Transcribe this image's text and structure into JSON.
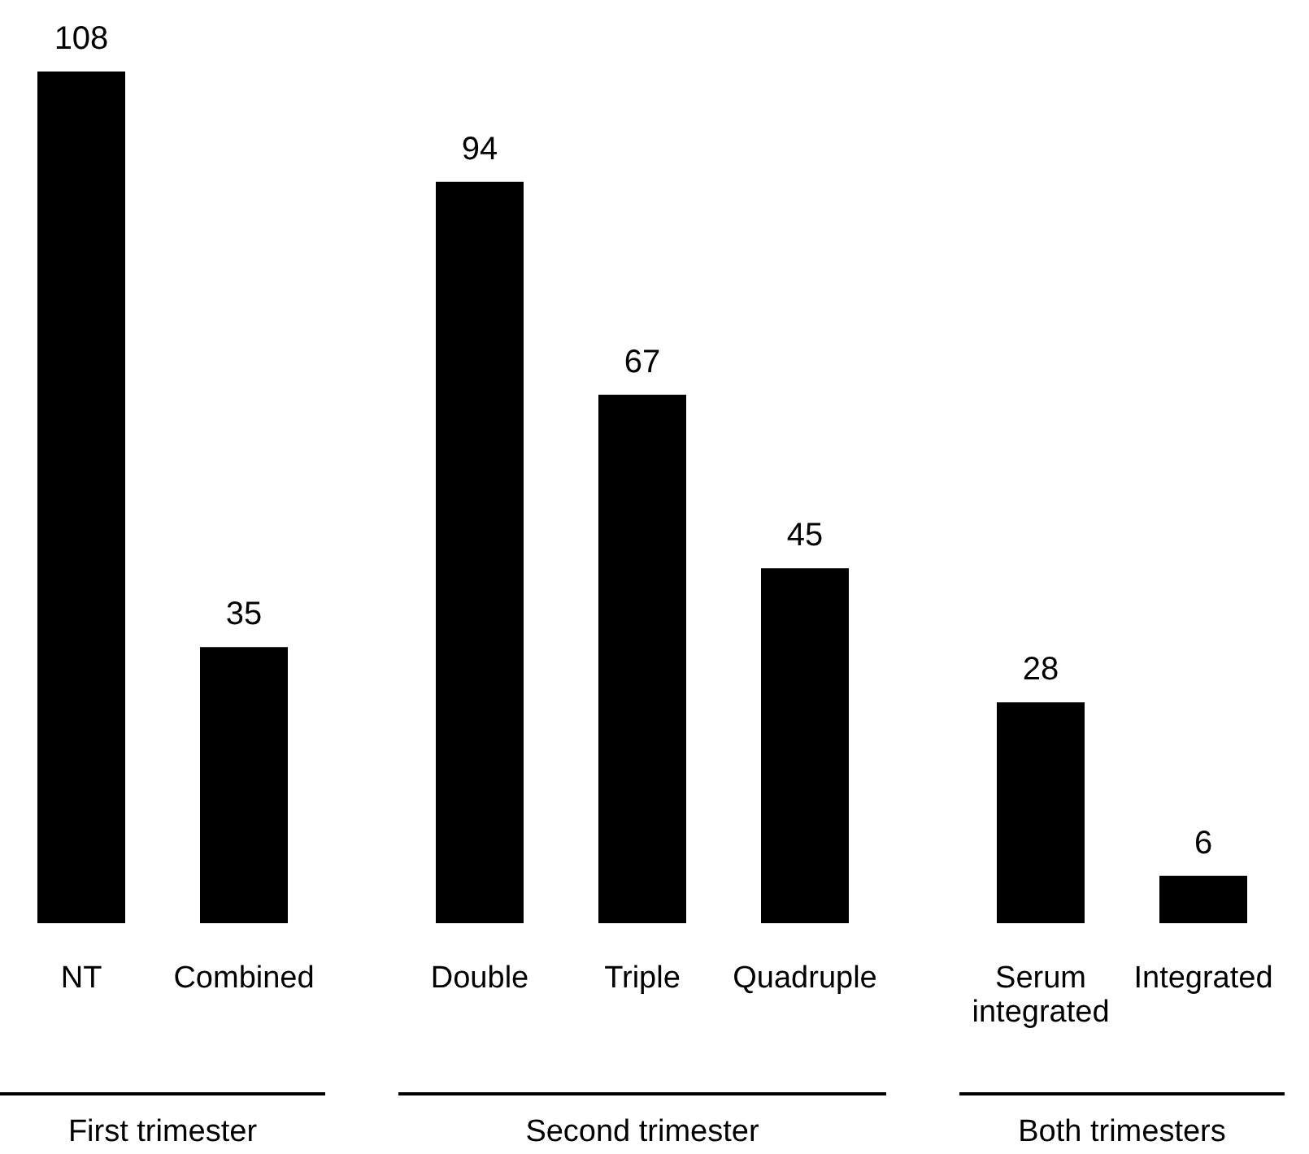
{
  "chart_data": [
    {
      "type": "bar",
      "xlabel": "First trimester",
      "categories": [
        "NT",
        "Combined"
      ],
      "values": [
        108,
        35
      ],
      "color": "#000000",
      "data_labels": true
    },
    {
      "type": "bar",
      "xlabel": "Second trimester",
      "categories": [
        "Double",
        "Triple",
        "Quadruple"
      ],
      "values": [
        94,
        67,
        45
      ],
      "color": "#000000",
      "data_labels": true
    },
    {
      "type": "bar",
      "xlabel": "Both trimesters",
      "categories": [
        "Serum integrated",
        "Integrated"
      ],
      "values": [
        28,
        6
      ],
      "color": "#000000",
      "data_labels": true
    }
  ]
}
